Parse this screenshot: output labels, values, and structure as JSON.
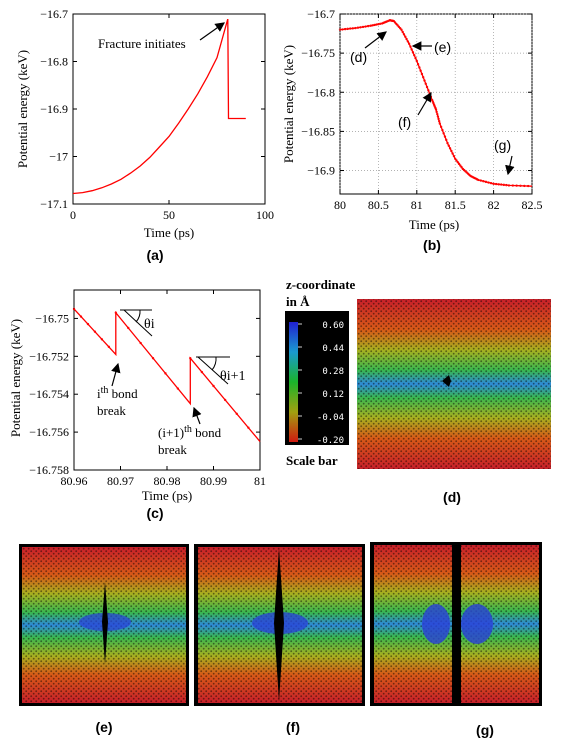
{
  "panel_labels": [
    "(a)",
    "(b)",
    "(c)",
    "(d)",
    "(e)",
    "(f)",
    "(g)"
  ],
  "chart_data": [
    {
      "type": "line",
      "panel": "(a)",
      "xlabel": "Time (ps)",
      "ylabel": "Potential energy  (keV)",
      "xlim": [
        0,
        100
      ],
      "ylim": [
        -17.1,
        -16.7
      ],
      "xticks": [
        "0",
        "50",
        "100"
      ],
      "yticks": [
        "-16.7",
        "-16.8",
        "-16.9",
        "-17",
        "-17.1"
      ],
      "grid": false,
      "annotation": "Fracture initiates",
      "series": [
        {
          "color": "#ff0000",
          "x": [
            0,
            5,
            10,
            15,
            20,
            25,
            30,
            35,
            40,
            45,
            50,
            55,
            60,
            65,
            70,
            75,
            80.5,
            80.6,
            81,
            82,
            85,
            90
          ],
          "y": [
            -17.078,
            -17.076,
            -17.072,
            -17.066,
            -17.058,
            -17.048,
            -17.035,
            -17.02,
            -17.002,
            -16.98,
            -16.958,
            -16.93,
            -16.9,
            -16.868,
            -16.832,
            -16.792,
            -16.712,
            -16.712,
            -16.92,
            -16.92,
            -16.92,
            -16.92
          ]
        }
      ]
    },
    {
      "type": "line",
      "panel": "(b)",
      "xlabel": "Time (ps)",
      "ylabel": "Potential energy  (keV)",
      "xlim": [
        80,
        82.5
      ],
      "ylim": [
        -16.93,
        -16.7
      ],
      "xticks": [
        "80",
        "80.5",
        "81",
        "81.5",
        "82",
        "82.5"
      ],
      "yticks": [
        "-16.7",
        "-16.75",
        "-16.8",
        "-16.85",
        "-16.9"
      ],
      "grid": true,
      "annotations": [
        "(d)",
        "(e)",
        "(f)",
        "(g)"
      ],
      "series": [
        {
          "color": "#ff0000",
          "x": [
            80,
            80.2,
            80.4,
            80.55,
            80.65,
            80.7,
            80.8,
            80.9,
            81.0,
            81.1,
            81.2,
            81.25,
            81.3,
            81.4,
            81.5,
            81.6,
            81.7,
            81.8,
            82.0,
            82.2,
            82.5
          ],
          "y": [
            -16.72,
            -16.718,
            -16.715,
            -16.712,
            -16.708,
            -16.709,
            -16.72,
            -16.738,
            -16.76,
            -16.785,
            -16.81,
            -16.822,
            -16.84,
            -16.865,
            -16.885,
            -16.898,
            -16.907,
            -16.912,
            -16.917,
            -16.919,
            -16.92
          ]
        }
      ]
    },
    {
      "type": "line",
      "panel": "(c)",
      "xlabel": "Time (ps)",
      "ylabel": "Potential energy  (keV)",
      "xlim": [
        80.96,
        81
      ],
      "ylim": [
        -16.758,
        -16.7485
      ],
      "xticks": [
        "80.96",
        "80.97",
        "80.98",
        "80.99",
        "81"
      ],
      "yticks": [
        "-16.75",
        "-16.752",
        "-16.754",
        "-16.756",
        "-16.758"
      ],
      "grid": false,
      "annotations": [
        "θi",
        "θi+1",
        "ith bond break",
        "(i+1)th bond break"
      ],
      "series": [
        {
          "color": "#ff0000",
          "x": [
            80.96,
            80.969,
            80.969,
            80.985,
            80.985,
            81
          ],
          "y": [
            -16.7495,
            -16.7519,
            -16.7497,
            -16.7545,
            -16.7521,
            -16.7565
          ]
        }
      ]
    }
  ],
  "texts": {
    "a_annotation": "Fracture initiates",
    "c_theta_i": "θi",
    "c_theta_i1": "θi+1",
    "c_bond_i_1": "i",
    "c_bond_i_2": "th",
    "c_bond_i_3": " bond",
    "c_bond_i_4": "break",
    "c_bond_i1_1": "(i+1)",
    "c_bond_i1_2": "th",
    "c_bond_i1_3": " bond",
    "c_bond_i1_4": "break",
    "d_title_1": "z-coordinate",
    "d_title_2": "in Å",
    "d_scale_label": "Scale bar",
    "d_scale_ticks": [
      "0.60",
      "0.44",
      "0.28",
      "0.12",
      "-0.04",
      "-0.20"
    ]
  },
  "colors": {
    "curve": "#ff0000",
    "scale_top": "#1a2fd8",
    "scale_mid": "#1ab42a",
    "scale_bottom": "#d01a10",
    "crack": "#000000"
  }
}
